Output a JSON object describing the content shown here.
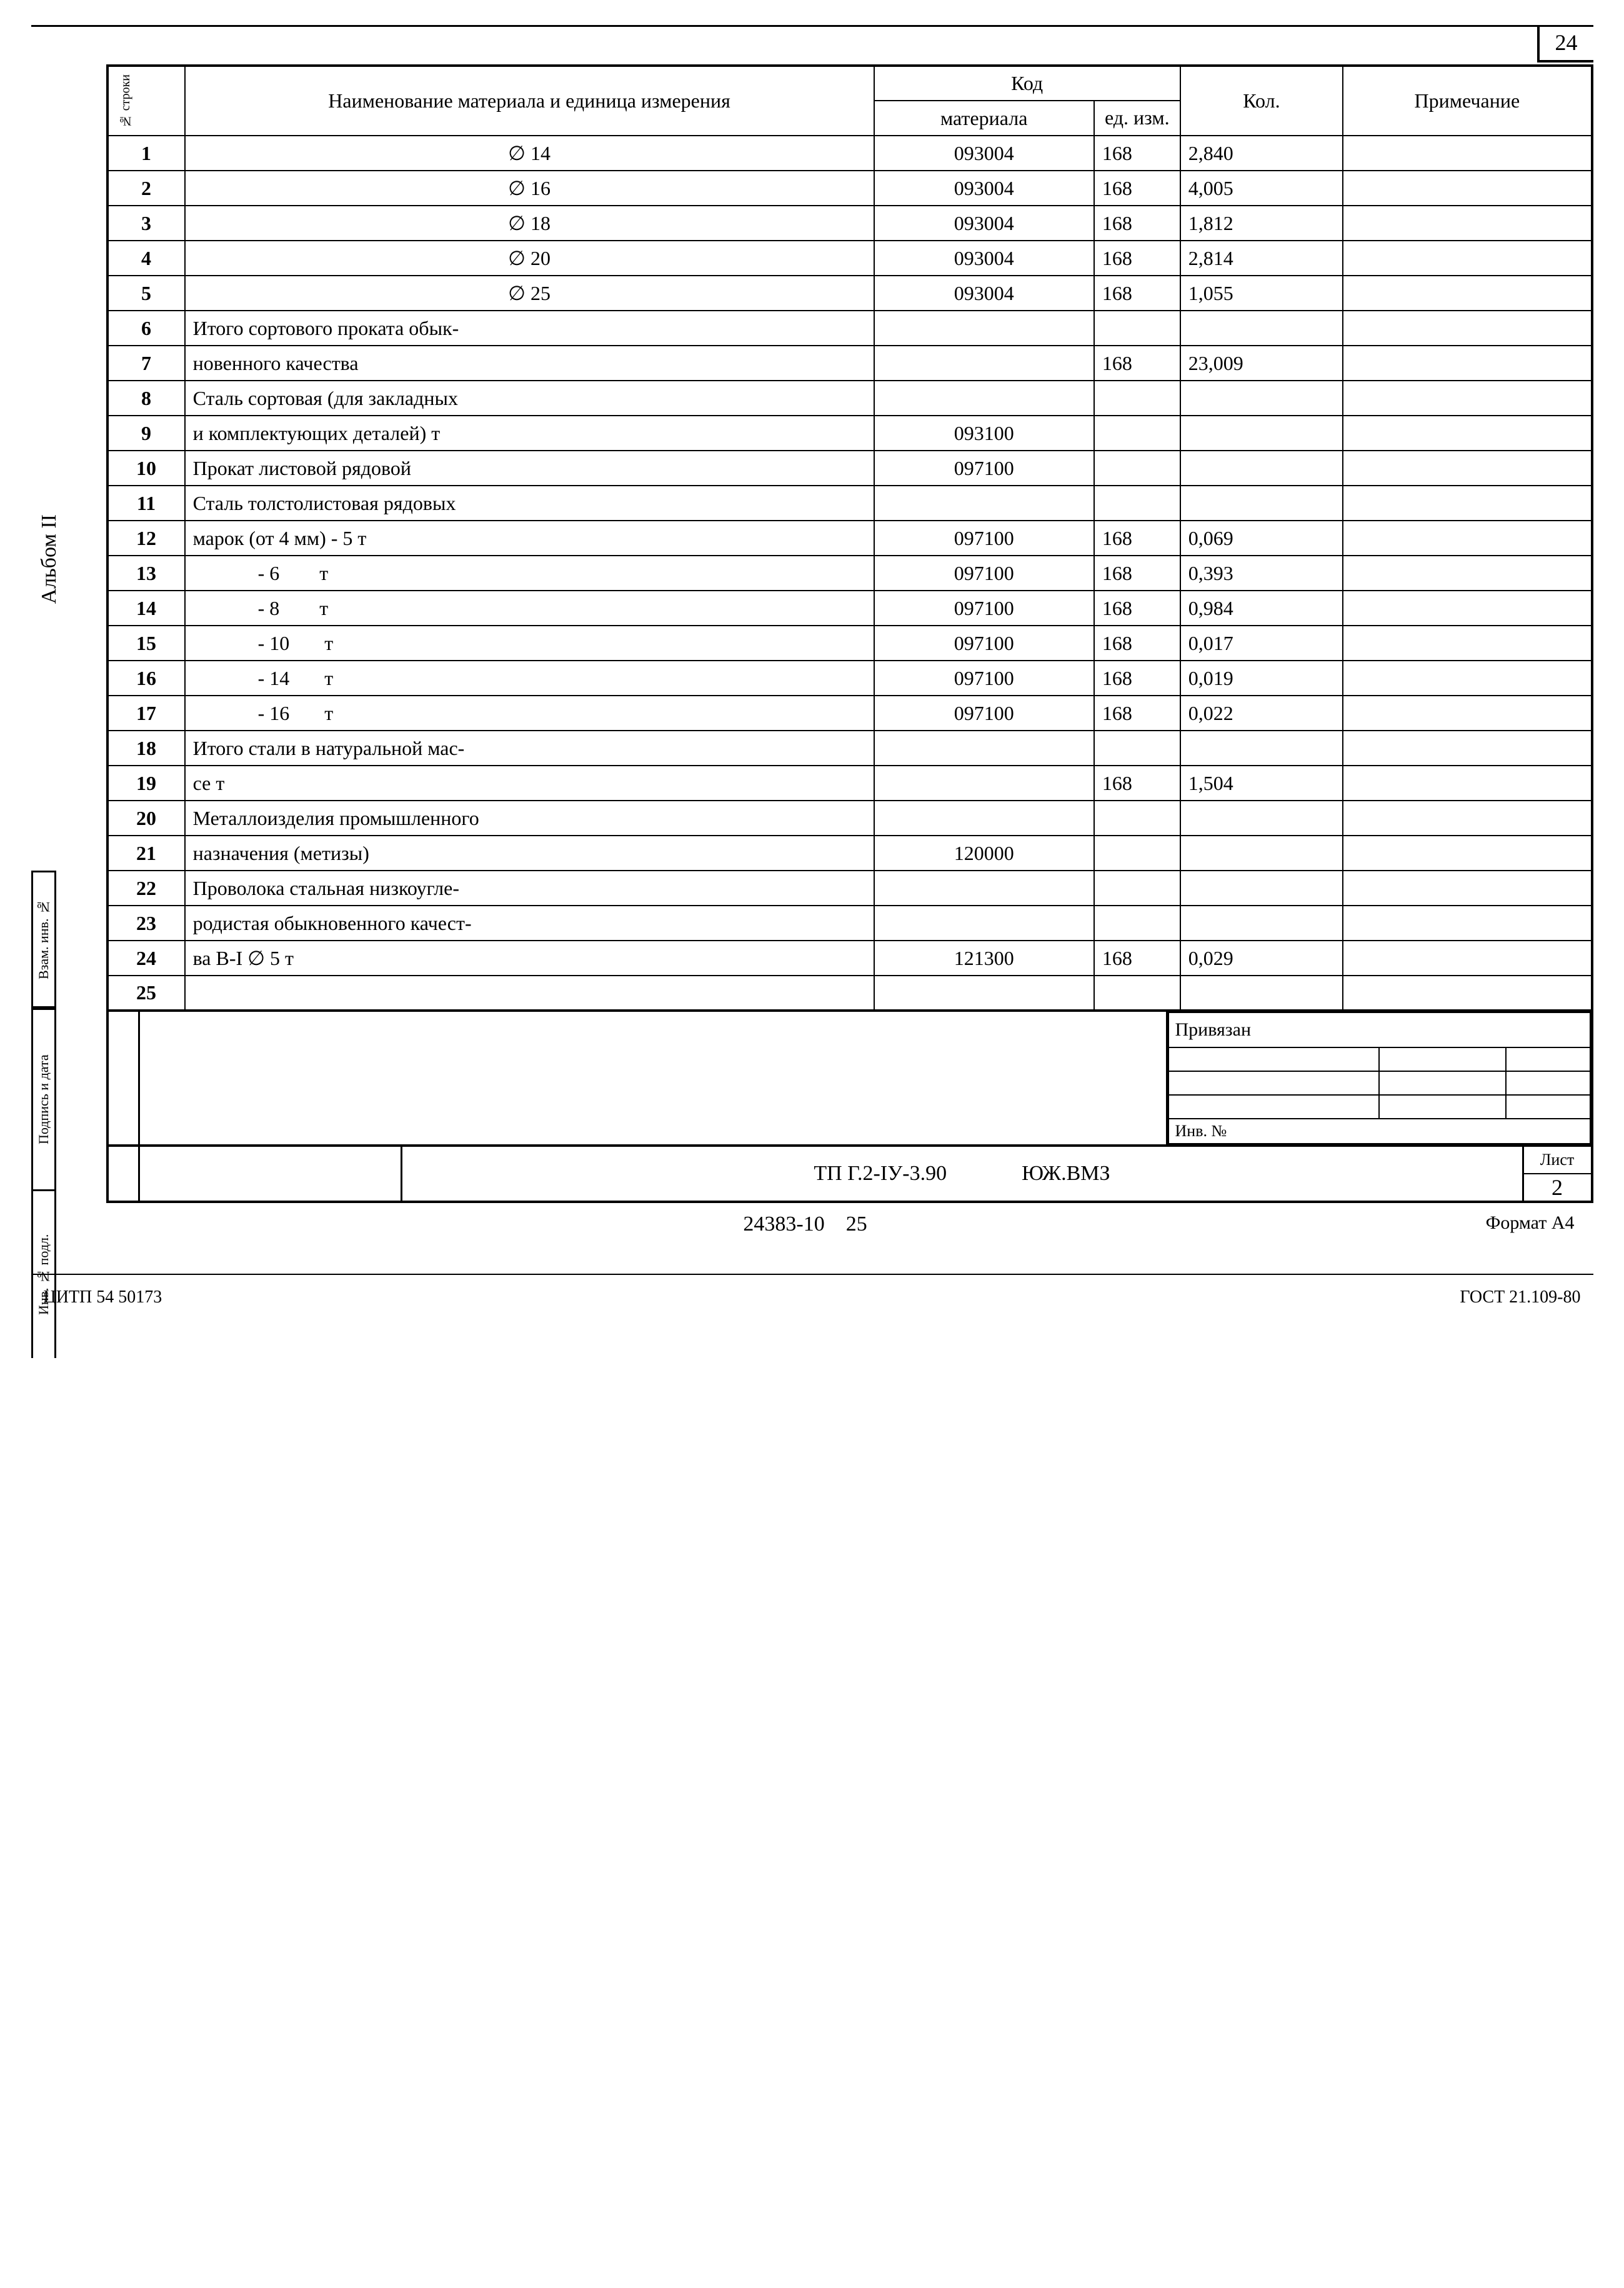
{
  "page_number": "24",
  "vertical_label": "Альбом II",
  "side_labels": {
    "vzam": "Взам. инв. №",
    "podpis": "Подпись и дата",
    "inv": "Инв. № подл."
  },
  "headers": {
    "row_num": "№ строки",
    "name": "Наименование материала   и единица измерения",
    "code_group": "Код",
    "code_material": "материала",
    "code_unit": "ед. изм.",
    "qty": "Кол.",
    "note": "Примечание"
  },
  "rows": [
    {
      "n": "1",
      "name": "∅ 14",
      "code": "093004",
      "unit": "168",
      "qty": "2,840",
      "note": "",
      "align": "center"
    },
    {
      "n": "2",
      "name": "∅ 16",
      "code": "093004",
      "unit": "168",
      "qty": "4,005",
      "note": "",
      "align": "center"
    },
    {
      "n": "3",
      "name": "∅ 18",
      "code": "093004",
      "unit": "168",
      "qty": "1,812",
      "note": "",
      "align": "center"
    },
    {
      "n": "4",
      "name": "∅ 20",
      "code": "093004",
      "unit": "168",
      "qty": "2,814",
      "note": "",
      "align": "center"
    },
    {
      "n": "5",
      "name": "∅ 25",
      "code": "093004",
      "unit": "168",
      "qty": "1,055",
      "note": "",
      "align": "center"
    },
    {
      "n": "6",
      "name": "Итого сортового проката обык-",
      "code": "",
      "unit": "",
      "qty": "",
      "note": ""
    },
    {
      "n": "7",
      "name": "новенного качества",
      "code": "",
      "unit": "168",
      "qty": "23,009",
      "note": ""
    },
    {
      "n": "8",
      "name": "Сталь сортовая (для закладных",
      "code": "",
      "unit": "",
      "qty": "",
      "note": ""
    },
    {
      "n": "9",
      "name": "и комплектующих деталей)   т",
      "code": "093100",
      "unit": "",
      "qty": "",
      "note": ""
    },
    {
      "n": "10",
      "name": "Прокат листовой рядовой",
      "code": "097100",
      "unit": "",
      "qty": "",
      "note": ""
    },
    {
      "n": "11",
      "name": "Сталь толстолистовая рядовых",
      "code": "",
      "unit": "",
      "qty": "",
      "note": ""
    },
    {
      "n": "12",
      "name": "марок (от 4 мм) - 5        т",
      "code": "097100",
      "unit": "168",
      "qty": "0,069",
      "note": ""
    },
    {
      "n": "13",
      "name": "             - 6        т",
      "code": "097100",
      "unit": "168",
      "qty": "0,393",
      "note": "",
      "indent": true
    },
    {
      "n": "14",
      "name": "             - 8        т",
      "code": "097100",
      "unit": "168",
      "qty": "0,984",
      "note": "",
      "indent": true
    },
    {
      "n": "15",
      "name": "             - 10       т",
      "code": "097100",
      "unit": "168",
      "qty": "0,017",
      "note": "",
      "indent": true
    },
    {
      "n": "16",
      "name": "             - 14       т",
      "code": "097100",
      "unit": "168",
      "qty": "0,019",
      "note": "",
      "indent": true
    },
    {
      "n": "17",
      "name": "             - 16       т",
      "code": "097100",
      "unit": "168",
      "qty": "0,022",
      "note": "",
      "indent": true
    },
    {
      "n": "18",
      "name": "Итого стали в натуральной мас-",
      "code": "",
      "unit": "",
      "qty": "",
      "note": ""
    },
    {
      "n": "19",
      "name": "се                        т",
      "code": "",
      "unit": "168",
      "qty": "1,504",
      "note": ""
    },
    {
      "n": "20",
      "name": "Металлоизделия промышленного",
      "code": "",
      "unit": "",
      "qty": "",
      "note": ""
    },
    {
      "n": "21",
      "name": "назначения (метизы)",
      "code": "120000",
      "unit": "",
      "qty": "",
      "note": ""
    },
    {
      "n": "22",
      "name": "Проволока стальная низкоугле-",
      "code": "",
      "unit": "",
      "qty": "",
      "note": ""
    },
    {
      "n": "23",
      "name": "родистая обыкновенного качест-",
      "code": "",
      "unit": "",
      "qty": "",
      "note": ""
    },
    {
      "n": "24",
      "name": "ва В-I ∅ 5               т",
      "code": "121300",
      "unit": "168",
      "qty": "0,029",
      "note": ""
    },
    {
      "n": "25",
      "name": "",
      "code": "",
      "unit": "",
      "qty": "",
      "note": ""
    }
  ],
  "bind_section": {
    "header": "Привязан",
    "inv_label": "Инв. №"
  },
  "title_block": {
    "doc_code": "ТП Г.2-IУ-3.90",
    "org": "ЮЖ.ВМЗ",
    "sheet_label": "Лист",
    "sheet_num": "2"
  },
  "footer": {
    "mid_left": "24383-10",
    "mid_right": "25",
    "format": "Формат А4",
    "bottom_left": "ЦИТП 54 50173",
    "bottom_right": "ГОСТ 21.109-80"
  }
}
